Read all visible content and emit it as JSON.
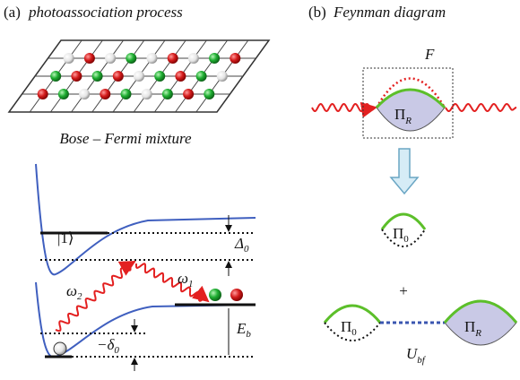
{
  "panel_a": {
    "label": "(a)",
    "title": "photoassociation process",
    "mixture_label": "Bose – Fermi mixture",
    "state_label": "|1⟩",
    "delta0": {
      "symbol": "Δ",
      "sub": "0"
    },
    "omega2": {
      "symbol": "ω",
      "sub": "2"
    },
    "omega1": {
      "symbol": "ω",
      "sub": "1"
    },
    "binding": {
      "symbol": "E",
      "sub": "b"
    },
    "detuning": {
      "symbol": "−δ",
      "sub": "0"
    }
  },
  "panel_b": {
    "label": "(b)",
    "title": "Feynman diagram",
    "vertex_label": "F",
    "pi_r_top": {
      "symbol": "Π",
      "sub": "R"
    },
    "pi_0_top": {
      "symbol": "Π",
      "sub": "0"
    },
    "plus": "+",
    "pi_0_bottom": {
      "symbol": "Π",
      "sub": "0"
    },
    "pi_r_bottom": {
      "symbol": "Π",
      "sub": "R"
    },
    "interaction": {
      "symbol": "U",
      "sub": "bf"
    }
  }
}
